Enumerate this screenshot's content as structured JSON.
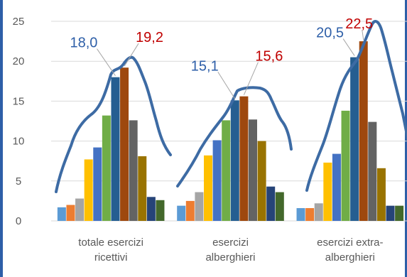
{
  "chart_data": {
    "type": "bar",
    "title": "",
    "xlabel": "",
    "ylabel": "",
    "ylim": [
      0,
      25
    ],
    "yticks": [
      0,
      5,
      10,
      15,
      20,
      25
    ],
    "grid": true,
    "legend": "none",
    "categories": [
      [
        "totale esercizi",
        "ricettivi"
      ],
      [
        "esercizi",
        "alberghieri"
      ],
      [
        "esercizi extra-",
        "alberghieri"
      ]
    ],
    "series": [
      {
        "color": "#5b9bd5",
        "values": [
          1.7,
          1.9,
          1.6
        ]
      },
      {
        "color": "#ed7d31",
        "values": [
          2.0,
          2.5,
          1.6
        ]
      },
      {
        "color": "#a5a5a5",
        "values": [
          2.8,
          3.6,
          2.2
        ]
      },
      {
        "color": "#ffc000",
        "values": [
          7.7,
          8.2,
          7.3
        ]
      },
      {
        "color": "#4472c4",
        "values": [
          9.2,
          10.1,
          8.4
        ]
      },
      {
        "color": "#70ad47",
        "values": [
          13.2,
          12.6,
          13.8
        ]
      },
      {
        "color": "#255e91",
        "values": [
          18.0,
          15.1,
          20.5
        ]
      },
      {
        "color": "#9e480e",
        "values": [
          19.2,
          15.6,
          22.5
        ]
      },
      {
        "color": "#636363",
        "values": [
          12.6,
          12.7,
          12.4
        ]
      },
      {
        "color": "#997300",
        "values": [
          8.1,
          10.0,
          6.6
        ]
      },
      {
        "color": "#264478",
        "values": [
          3.0,
          4.3,
          1.9
        ]
      },
      {
        "color": "#43682b",
        "values": [
          2.6,
          3.6,
          1.9
        ]
      }
    ],
    "annotations": [
      {
        "category": 0,
        "series": 6,
        "text": "18,0",
        "color": "#2e5fa8"
      },
      {
        "category": 0,
        "series": 7,
        "text": "19,2",
        "color": "#c00000"
      },
      {
        "category": 1,
        "series": 6,
        "text": "15,1",
        "color": "#2e5fa8"
      },
      {
        "category": 1,
        "series": 7,
        "text": "15,6",
        "color": "#c00000"
      },
      {
        "category": 2,
        "series": 6,
        "text": "20,5",
        "color": "#2e5fa8"
      },
      {
        "category": 2,
        "series": 7,
        "text": "22,5",
        "color": "#c00000"
      }
    ]
  }
}
